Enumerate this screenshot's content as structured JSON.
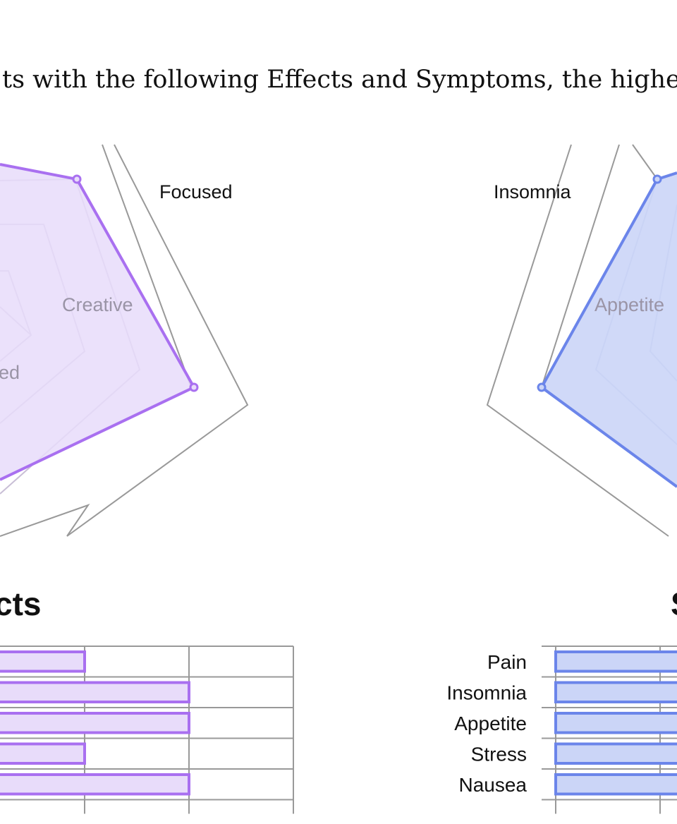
{
  "intro_text": "ts with the following Effects and Symptoms, the higher th",
  "sections": {
    "effects_title": "cts",
    "symptoms_title": "S"
  },
  "colors": {
    "effects_stroke": "#a970f0",
    "effects_fill": "#e8dcfa",
    "symptoms_stroke": "#6b85ea",
    "symptoms_fill": "#cbd5f7",
    "grid": "#999999"
  },
  "chart_data": [
    {
      "type": "radar",
      "id": "effects-radar",
      "axes": [
        "Focused",
        "Creative",
        "ed"
      ],
      "visible_labels": [
        {
          "text": "Focused",
          "muted": false
        },
        {
          "text": "Creative",
          "muted": true
        },
        {
          "text": "ed",
          "muted": true
        }
      ]
    },
    {
      "type": "radar",
      "id": "symptoms-radar",
      "axes": [
        "Insomnia",
        "Appetite"
      ],
      "visible_labels": [
        {
          "text": "Insomnia",
          "muted": false
        },
        {
          "text": "Appetite",
          "muted": true
        }
      ]
    },
    {
      "type": "bar",
      "id": "effects-bars",
      "orientation": "horizontal",
      "categories": [
        "",
        "",
        "",
        "",
        ""
      ],
      "values": [
        2,
        3,
        3,
        2,
        3
      ],
      "xlim": [
        0,
        4
      ],
      "grid": true
    },
    {
      "type": "bar",
      "id": "symptoms-bars",
      "orientation": "horizontal",
      "categories": [
        "Pain",
        "Insomnia",
        "Appetite",
        "Stress",
        "Nausea"
      ],
      "values": [
        3,
        3,
        3,
        3,
        3
      ],
      "xlim": [
        0,
        4
      ],
      "grid": true
    }
  ]
}
